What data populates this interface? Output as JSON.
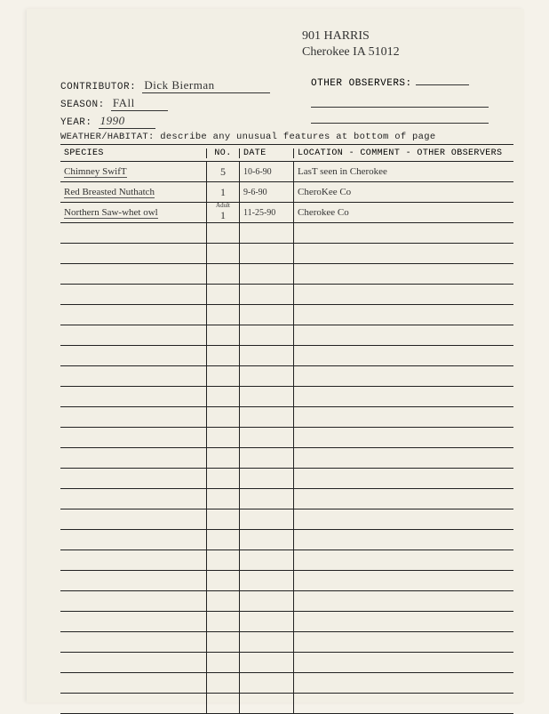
{
  "address": {
    "line1": "901 HARRIS",
    "line2": "Cherokee IA 51012"
  },
  "header": {
    "contributor_label": "CONTRIBUTOR:",
    "contributor_value": "Dick Bierman",
    "other_observers_label": "OTHER OBSERVERS:",
    "season_label": "SEASON:",
    "season_value": "FAll",
    "year_label": "YEAR:",
    "year_value": "1990",
    "weather_label": "WEATHER/HABITAT: describe any unusual features at bottom of page"
  },
  "table": {
    "columns": {
      "species": "SPECIES",
      "no": "NO.",
      "date": "DATE",
      "location": "LOCATION - COMMENT - OTHER OBSERVERS"
    },
    "rows": [
      {
        "species": "Chimney SwifT",
        "no": "5",
        "date": "10-6-90",
        "location": "LasT seen in Cherokee"
      },
      {
        "species": "Red Breasted Nuthatch",
        "no": "1",
        "date": "9-6-90",
        "location": "CheroKee Co"
      },
      {
        "species": "Northern Saw-whet owl",
        "no": "1",
        "no_note": "Adult",
        "date": "11-25-90",
        "location": "Cherokee Co"
      }
    ],
    "empty_rows": 24
  }
}
